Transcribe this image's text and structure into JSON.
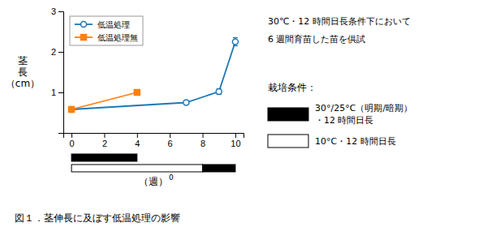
{
  "chart_data": {
    "type": "line",
    "x_label": "（週）",
    "x_label_superscript": "0",
    "y_label": "茎\n長\n（cm）",
    "xlim": [
      -0.5,
      10.5
    ],
    "ylim": [
      0,
      3
    ],
    "xticks": [
      0,
      2,
      4,
      6,
      8,
      10
    ],
    "yticks": [
      1,
      2,
      3
    ],
    "legend": "upper left",
    "series": [
      {
        "name": "低温処理",
        "x": [
          0,
          7,
          9,
          10
        ],
        "values": [
          0.58,
          0.75,
          1.02,
          2.25
        ],
        "errors": [
          0.05,
          0.05,
          0.07,
          0.1
        ],
        "marker": "open-circle"
      },
      {
        "name": "低温処理無",
        "x": [
          0,
          4
        ],
        "values": [
          0.58,
          1.0
        ],
        "marker": "filled-square"
      }
    ],
    "period_rows": [
      [
        {
          "x": [
            0,
            4
          ],
          "color": "#000000"
        }
      ],
      [
        {
          "x": [
            0,
            8
          ],
          "color": "#ffffff"
        },
        {
          "x": [
            8,
            10
          ],
          "color": "#000000"
        }
      ]
    ],
    "notes": [
      "30℃・12 時間日長条件下において",
      "6 週間育苗した苗を供試"
    ],
    "condition_legend": {
      "title": "栽培条件：",
      "items": [
        {
          "color": "#000000",
          "labels": [
            "30°/25°C（明期/暗期）",
            "・12 時間日長"
          ]
        },
        {
          "color": "#ffffff",
          "labels": [
            "10°C・12 時間日長"
          ]
        }
      ]
    },
    "caption": "図１．茎伸長に及ぼす低温処理の影響"
  }
}
